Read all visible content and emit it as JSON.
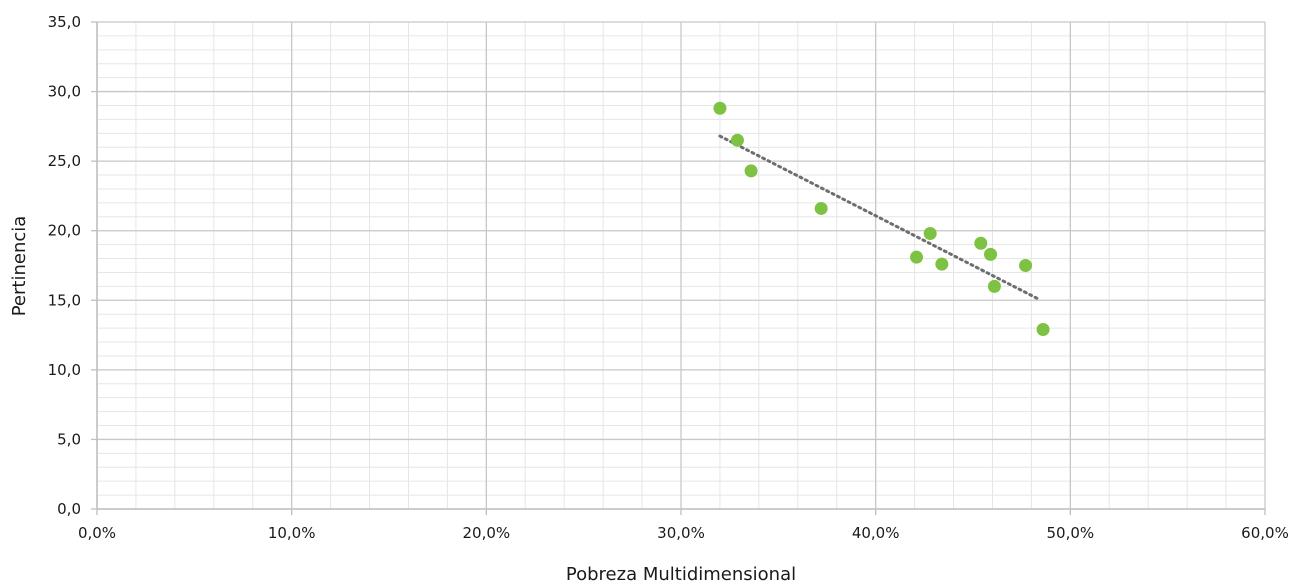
{
  "chart_data": {
    "type": "scatter",
    "title": "",
    "xlabel": "Pobreza Multidimensional",
    "ylabel": "Pertinencia",
    "xlim": [
      0,
      0.6
    ],
    "ylim": [
      0,
      35
    ],
    "x_ticks": [
      0,
      0.1,
      0.2,
      0.3,
      0.4,
      0.5,
      0.6
    ],
    "x_tick_labels": [
      "0,0%",
      "10,0%",
      "20,0%",
      "30,0%",
      "40,0%",
      "50,0%",
      "60,0%"
    ],
    "y_ticks": [
      0,
      5,
      10,
      15,
      20,
      25,
      30,
      35
    ],
    "y_tick_labels": [
      "0,0",
      "5,0",
      "10,0",
      "15,0",
      "20,0",
      "25,0",
      "30,0",
      "35,0"
    ],
    "x_minor_step": 0.02,
    "y_minor_step": 1,
    "grid": true,
    "points": [
      {
        "x": 0.32,
        "y": 28.8
      },
      {
        "x": 0.329,
        "y": 26.5
      },
      {
        "x": 0.336,
        "y": 24.3
      },
      {
        "x": 0.372,
        "y": 21.6
      },
      {
        "x": 0.421,
        "y": 18.1
      },
      {
        "x": 0.428,
        "y": 19.8
      },
      {
        "x": 0.434,
        "y": 17.6
      },
      {
        "x": 0.454,
        "y": 19.1
      },
      {
        "x": 0.459,
        "y": 18.3
      },
      {
        "x": 0.461,
        "y": 16.0
      },
      {
        "x": 0.477,
        "y": 17.5
      },
      {
        "x": 0.486,
        "y": 12.9
      }
    ],
    "trendline": {
      "style": "dotted",
      "x": [
        0.32,
        0.4835
      ],
      "y": [
        26.8,
        15.1
      ]
    },
    "colors": {
      "points": "#7dc242",
      "trendline": "#6e6e6e",
      "major_grid": "#c8c8c8",
      "minor_grid": "#e6e6e6",
      "axis": "#bfbfbf"
    }
  }
}
